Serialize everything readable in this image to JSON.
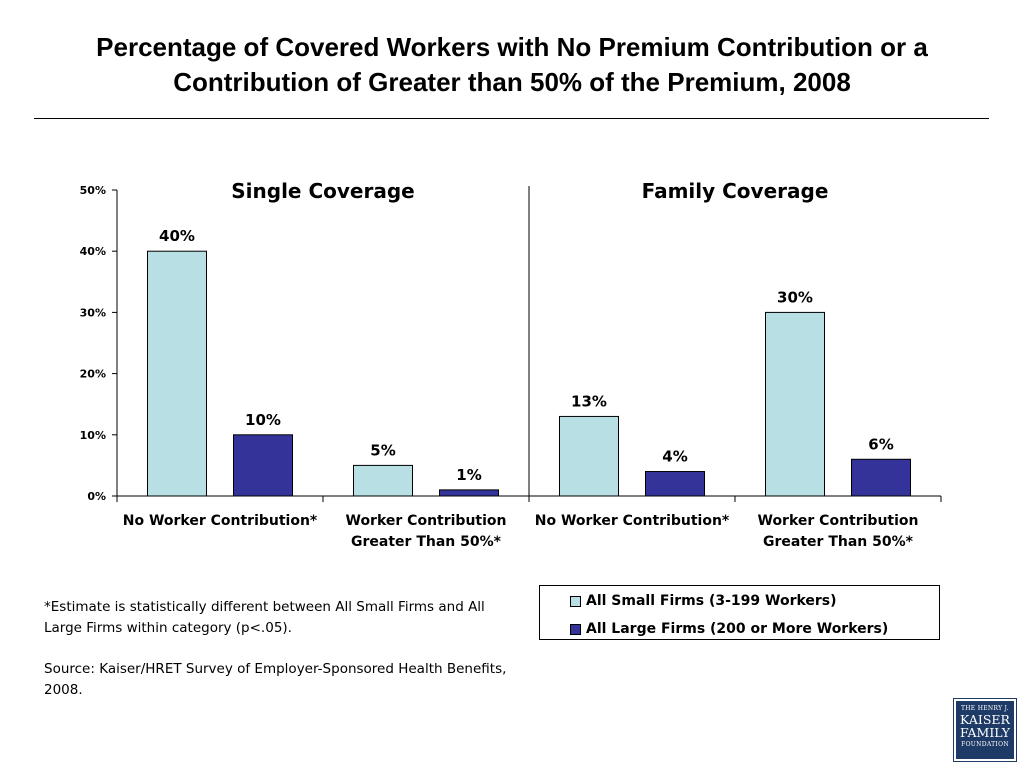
{
  "title": "Percentage of Covered Workers with No Premium Contribution or a Contribution of Greater than 50% of the Premium, 2008",
  "chart_data": {
    "type": "bar",
    "panels": [
      "Single Coverage",
      "Family Coverage"
    ],
    "categories": [
      {
        "panel": "Single Coverage",
        "label_lines": [
          "No Worker Contribution*"
        ]
      },
      {
        "panel": "Single Coverage",
        "label_lines": [
          "Worker Contribution",
          "Greater Than 50%*"
        ]
      },
      {
        "panel": "Family Coverage",
        "label_lines": [
          "No Worker Contribution*"
        ]
      },
      {
        "panel": "Family Coverage",
        "label_lines": [
          "Worker Contribution",
          "Greater Than 50%*"
        ]
      }
    ],
    "series": [
      {
        "name": "All Small Firms (3-199 Workers)",
        "color": "#b8e0e4",
        "values": [
          40,
          5,
          13,
          30
        ],
        "labels": [
          "40%",
          "5%",
          "13%",
          "30%"
        ]
      },
      {
        "name": "All Large Firms (200 or More Workers)",
        "color": "#333399",
        "values": [
          10,
          1,
          4,
          6
        ],
        "labels": [
          "10%",
          "1%",
          "4%",
          "6%"
        ]
      }
    ],
    "ylim": [
      0,
      50
    ],
    "yticks": [
      0,
      10,
      20,
      30,
      40,
      50
    ],
    "ytick_labels": [
      "0%",
      "10%",
      "20%",
      "30%",
      "40%",
      "50%"
    ],
    "grid": false,
    "legend_position": "bottom-right"
  },
  "footnote": "*Estimate is statistically different between All Small Firms and All Large Firms within category (p<.05).",
  "source": "Source:  Kaiser/HRET Survey of Employer-Sponsored Health Benefits, 2008.",
  "logo": {
    "line1": "THE HENRY J.",
    "line2": "KAISER",
    "line3": "FAMILY",
    "line4": "FOUNDATION"
  }
}
